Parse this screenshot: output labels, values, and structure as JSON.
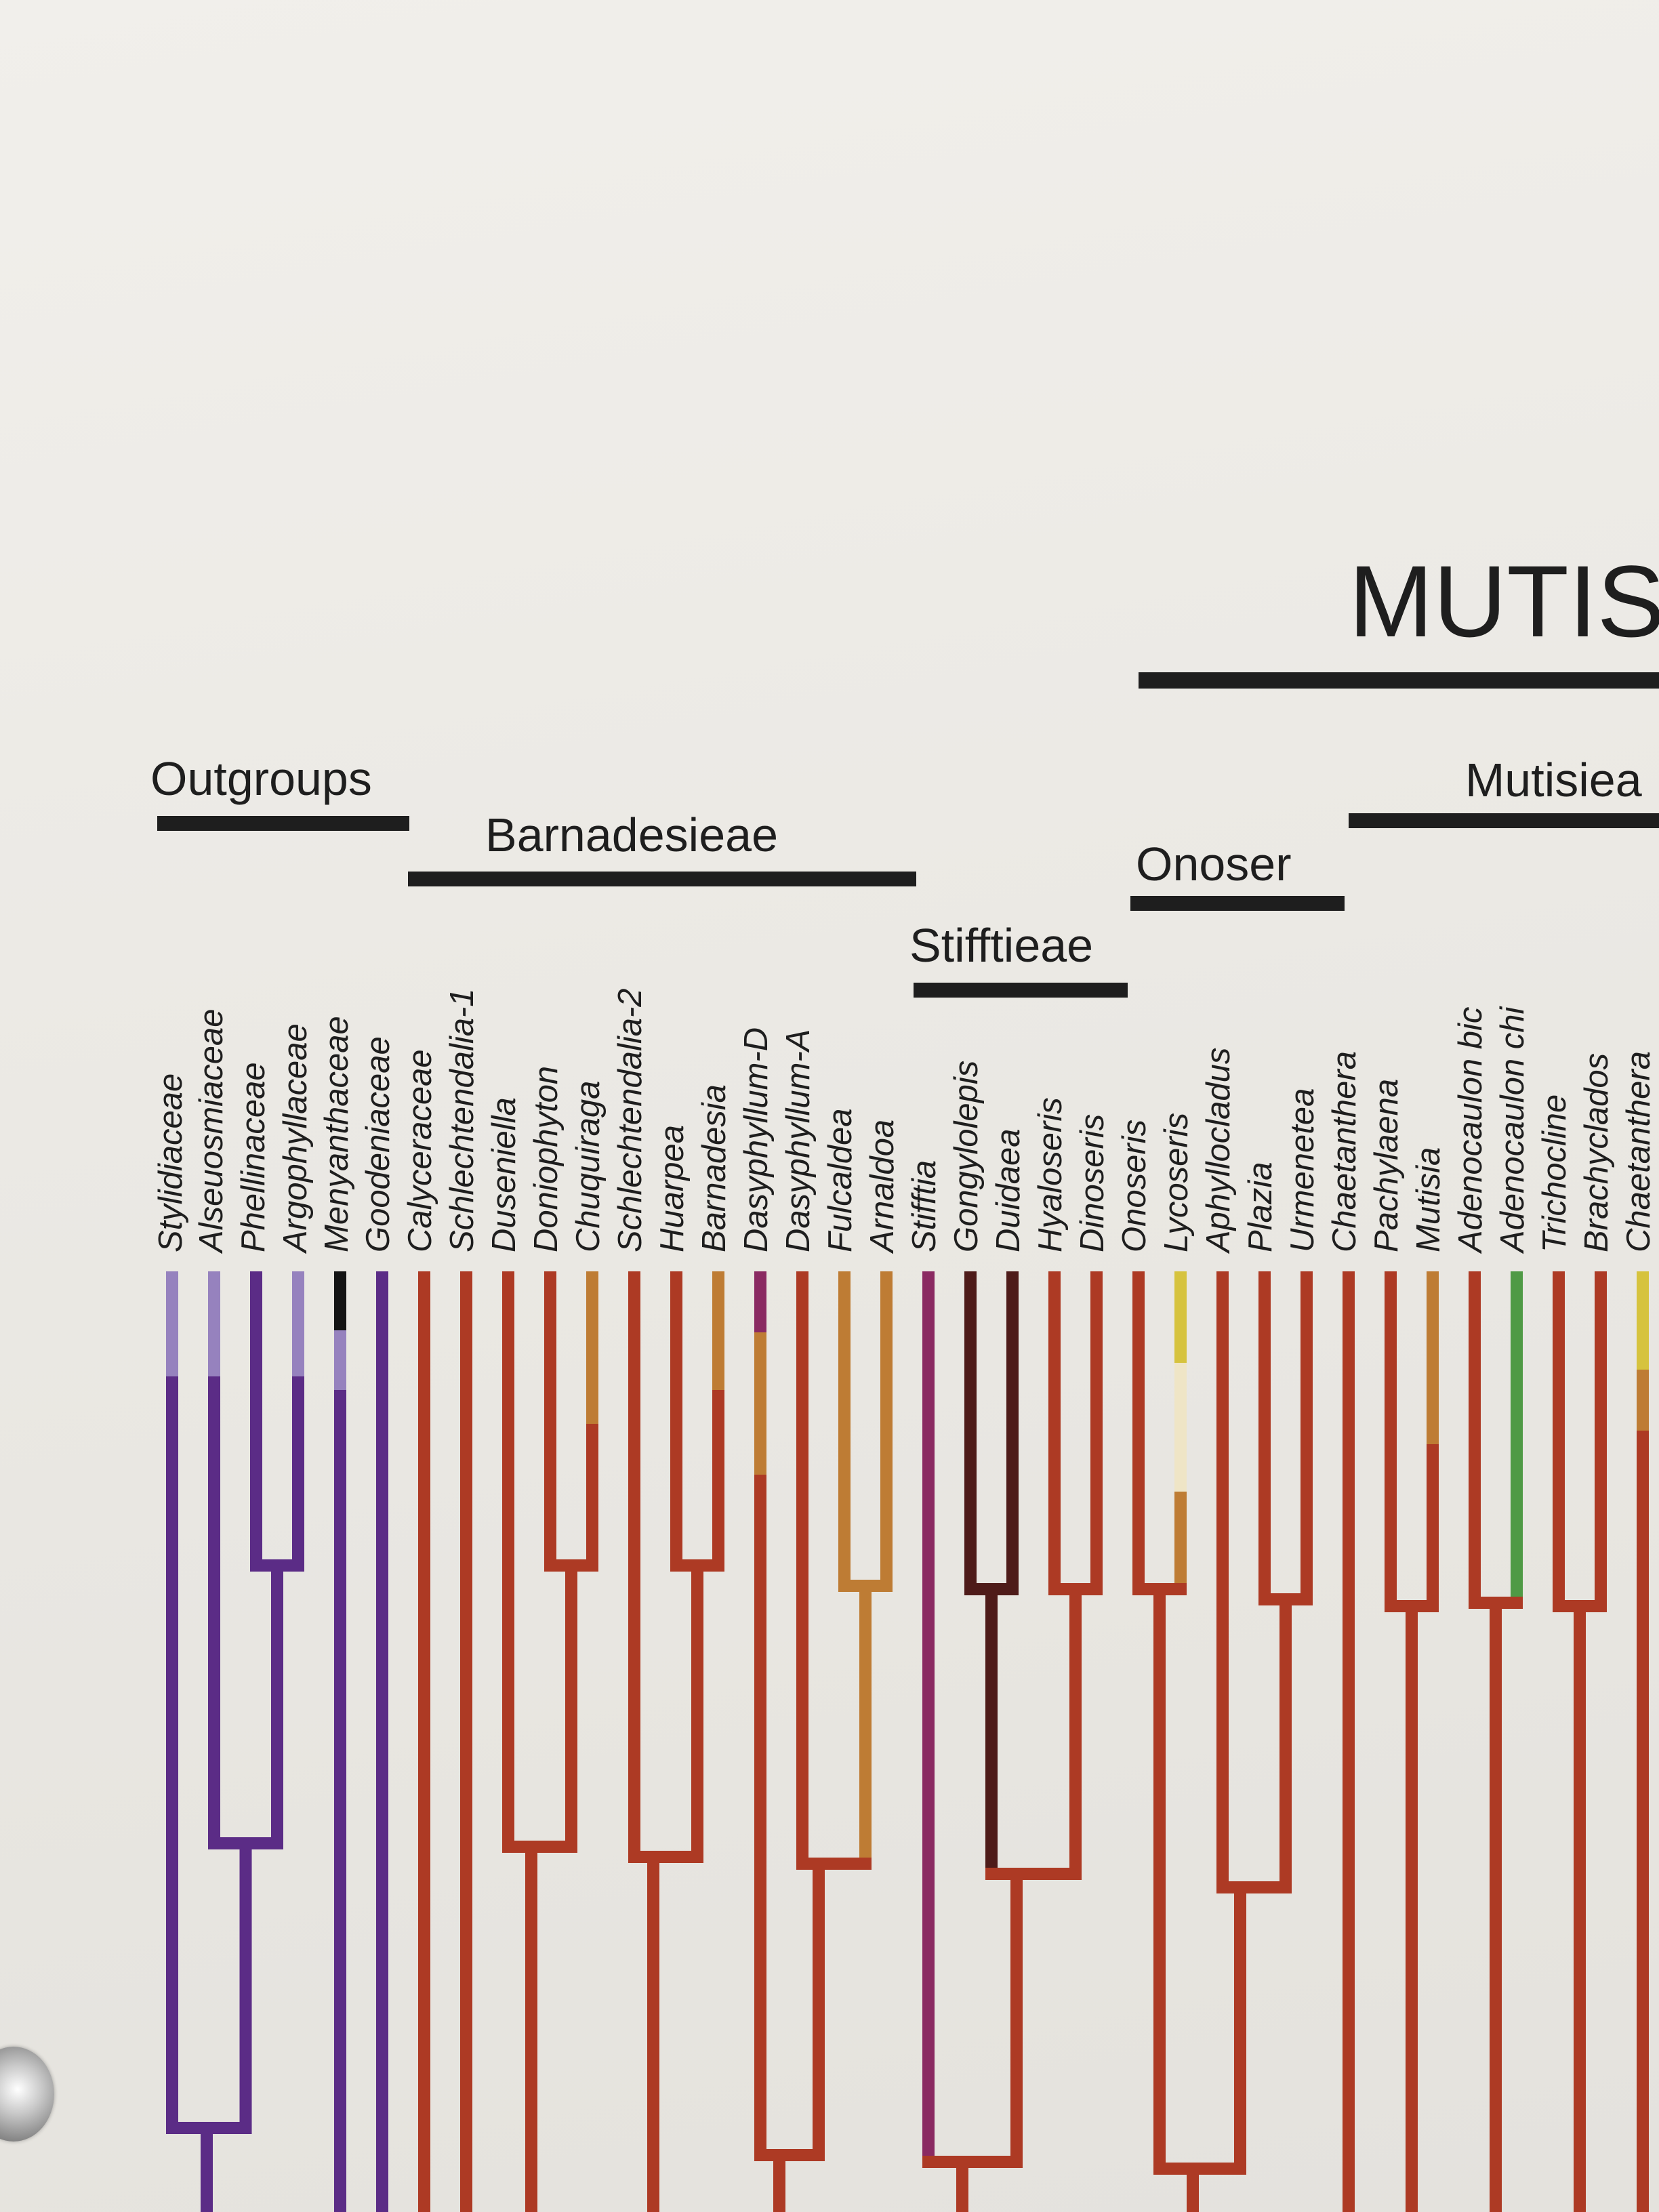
{
  "title": "MUTIS",
  "groups": {
    "outgroups": "Outgroups",
    "barnadesieae": "Barnadesieae",
    "stifftieae": "Stifftieae",
    "onoser": "Onoser",
    "mutisiea": "Mutisiea"
  },
  "taxa": [
    "Stylidiaceae",
    "Alseuosmiaceae",
    "Phellinaceae",
    "Argophyllaceae",
    "Menyanthaceae",
    "Goodeniaceae",
    "Calyceraceae",
    "Schlechtendalia-1",
    "Duseniella",
    "Doniophyton",
    "Chuquiraga",
    "Schlechtendalia-2",
    "Huarpea",
    "Barnadesia",
    "Dasyphyllum-D",
    "Dasyphyllum-A",
    "Fulcaldea",
    "Arnaldoa",
    "Stifftia",
    "Gongylolepis",
    "Duidaea",
    "Hyaloseris",
    "Dinoseris",
    "Onoseris",
    "Lycoseris",
    "Aphyllocladus",
    "Plazia",
    "Urmenetea",
    "Chaetanthera",
    "Pachylaena",
    "Mutisia",
    "Adenocaulon bic",
    "Adenocaulon chi",
    "Trichocline",
    "Brachyclados",
    "Chaetanthera"
  ],
  "colors": {
    "text": "#1e1e1e",
    "purple": "#5b2c86",
    "lavender": "#9682be",
    "black": "#141414",
    "rust": "#ad3a24",
    "tan": "#be7c34",
    "magenta": "#8a2a62",
    "darkbrown": "#4e1b19",
    "yellow": "#d6c33e",
    "cream": "#efe5c6",
    "green": "#4f9a45"
  }
}
